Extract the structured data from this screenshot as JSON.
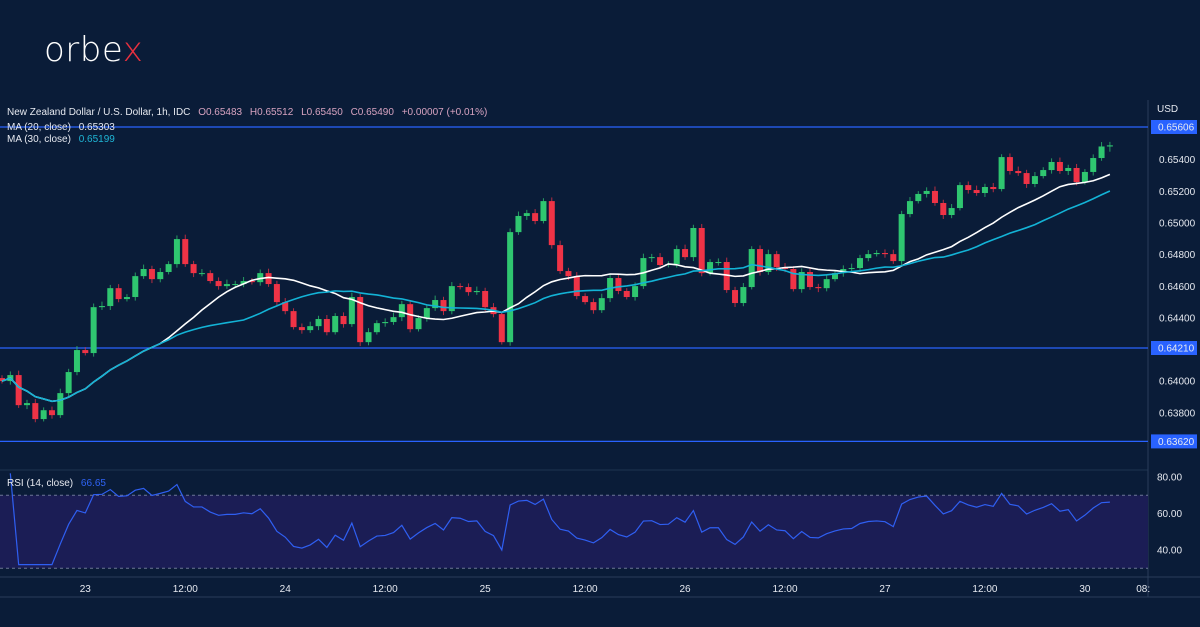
{
  "brand": {
    "logo_text": "orbex",
    "logo_main": "orbe",
    "logo_accent": "x"
  },
  "legend": {
    "symbol": "New Zealand Dollar / U.S. Dollar, 1h, IDC",
    "open": "O0.65483",
    "high": "H0.65512",
    "low": "L0.65450",
    "close": "C0.65490",
    "change": "+0.00007 (+0.01%)",
    "ma20_label": "MA (20, close)",
    "ma20_value": "0.65303",
    "ma30_label": "MA (30, close)",
    "ma30_value": "0.65199",
    "rsi_label": "RSI (14, close)",
    "rsi_value": "66.65"
  },
  "price_axis": {
    "currency": "USD",
    "ticks": [
      "0.65400",
      "0.65200",
      "0.65000",
      "0.64800",
      "0.64600",
      "0.64400",
      "0.64000",
      "0.63800"
    ],
    "levels": [
      "0.65606",
      "0.64210",
      "0.63620"
    ]
  },
  "rsi_axis": {
    "ticks": [
      "80.00",
      "60.00",
      "40.00"
    ]
  },
  "time_axis": {
    "ticks": [
      "23",
      "12:00",
      "24",
      "12:00",
      "25",
      "12:00",
      "26",
      "12:00",
      "27",
      "12:00",
      "30",
      "08:"
    ]
  },
  "colors": {
    "background": "#0a1c38",
    "up": "#2fc670",
    "down": "#ef3346",
    "ma20": "#ffffff",
    "ma30": "#13b3d6",
    "level_line": "#2962ff",
    "rsi_line": "#2f5ff2",
    "rsi_band": "#1b1d55"
  },
  "chart_data": {
    "type": "candlestick",
    "timeframe": "1h",
    "ylim": [
      0.6355,
      0.6568
    ],
    "first_open": 0.6402,
    "closes": [
      0.64001,
      0.64039,
      0.63849,
      0.63862,
      0.63761,
      0.63817,
      0.63786,
      0.63925,
      0.64058,
      0.64197,
      0.64178,
      0.64468,
      0.64475,
      0.64588,
      0.64519,
      0.64532,
      0.64664,
      0.64709,
      0.64645,
      0.6469,
      0.6474,
      0.64898,
      0.6474,
      0.64683,
      0.64683,
      0.64633,
      0.64601,
      0.64614,
      0.64614,
      0.64633,
      0.64626,
      0.64683,
      0.64614,
      0.645,
      0.64443,
      0.64342,
      0.64323,
      0.64348,
      0.64393,
      0.6431,
      0.64412,
      0.64361,
      0.64532,
      0.64247,
      0.6431,
      0.64367,
      0.64374,
      0.64405,
      0.64487,
      0.64329,
      0.64399,
      0.64462,
      0.64513,
      0.64443,
      0.64601,
      0.64595,
      0.64563,
      0.6457,
      0.64468,
      0.64424,
      0.64247,
      0.64942,
      0.65044,
      0.65062,
      0.65012,
      0.65138,
      0.6486,
      0.64696,
      0.64664,
      0.64538,
      0.645,
      0.64449,
      0.64525,
      0.64652,
      0.6457,
      0.64532,
      0.64601,
      0.64778,
      0.64784,
      0.64734,
      0.6474,
      0.64835,
      0.64784,
      0.64968,
      0.64683,
      0.64753,
      0.64753,
      0.64576,
      0.64494,
      0.64595,
      0.64835,
      0.6469,
      0.64803,
      0.64721,
      0.64709,
      0.64582,
      0.6469,
      0.64595,
      0.64588,
      0.64645,
      0.64683,
      0.64709,
      0.64715,
      0.64778,
      0.64803,
      0.6481,
      0.64803,
      0.64759,
      0.65056,
      0.65138,
      0.65183,
      0.65202,
      0.65126,
      0.6505,
      0.65094,
      0.65239,
      0.65208,
      0.65189,
      0.65227,
      0.65214,
      0.65416,
      0.65328,
      0.65315,
      0.65246,
      0.65296,
      0.65334,
      0.65385,
      0.65328,
      0.65347,
      0.65258,
      0.65322,
      0.6541,
      0.65483,
      0.6549
    ],
    "last_bar": {
      "open": 0.65483,
      "high": 0.65512,
      "low": 0.6545,
      "close": 0.6549
    },
    "horizontal_levels": [
      0.65606,
      0.6421,
      0.6362
    ],
    "moving_averages": [
      {
        "name": "MA (20, close)",
        "period": 20
      },
      {
        "name": "MA (30, close)",
        "period": 30
      }
    ],
    "rsi": {
      "period": 14,
      "ylim": [
        25,
        85
      ],
      "bands": [
        70,
        30
      ],
      "last": 66.65
    },
    "x_tick_bar_index": [
      10,
      22,
      34,
      46,
      58,
      70,
      82,
      94,
      106,
      118,
      130,
      137
    ]
  }
}
